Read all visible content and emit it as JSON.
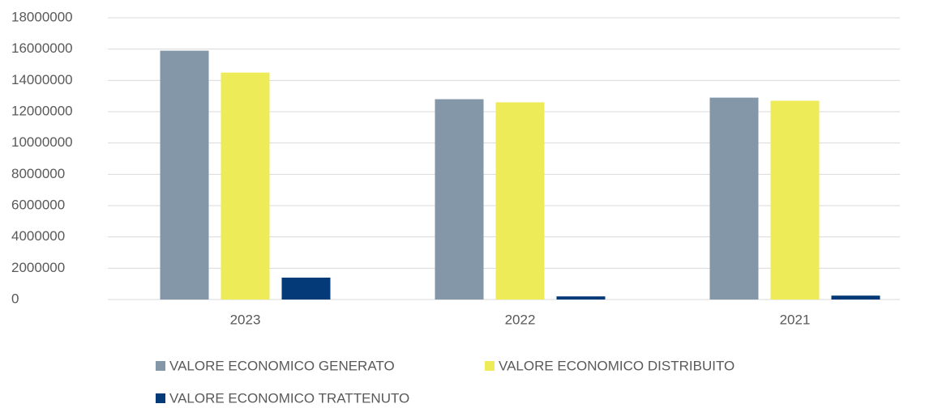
{
  "chart_data": {
    "type": "bar",
    "categories": [
      "2023",
      "2022",
      "2021"
    ],
    "series": [
      {
        "name": "VALORE ECONOMICO GENERATO",
        "color": "#8497a8",
        "values": [
          15900000,
          12800000,
          12900000
        ]
      },
      {
        "name": "VALORE ECONOMICO DISTRIBUITO",
        "color": "#eeeb58",
        "values": [
          14500000,
          12600000,
          12700000
        ]
      },
      {
        "name": "VALORE ECONOMICO TRATTENUTO",
        "color": "#053a78",
        "values": [
          1400000,
          200000,
          250000
        ]
      }
    ],
    "ylim": [
      0,
      18000000
    ],
    "yticks": [
      0,
      2000000,
      4000000,
      6000000,
      8000000,
      10000000,
      12000000,
      14000000,
      16000000,
      18000000
    ],
    "grid": true,
    "legend": "bottom"
  }
}
